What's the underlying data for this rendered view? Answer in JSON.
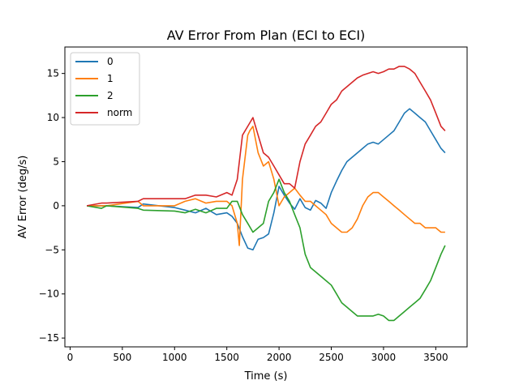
{
  "chart_data": {
    "type": "line",
    "title": "AV Error From Plan (ECI to ECI)",
    "xlabel": "Time (s)",
    "ylabel": "AV Error (deg/s)",
    "xlim": [
      -50,
      3800
    ],
    "ylim": [
      -16,
      18
    ],
    "xticks": [
      0,
      500,
      1000,
      1500,
      2000,
      2500,
      3000,
      3500
    ],
    "yticks": [
      -15,
      -10,
      -5,
      0,
      5,
      10,
      15
    ],
    "grid": false,
    "legend_position": "top-left",
    "series": [
      {
        "name": "0",
        "color": "#1f77b4",
        "x": [
          160,
          300,
          350,
          650,
          700,
          1000,
          1100,
          1200,
          1300,
          1400,
          1500,
          1550,
          1600,
          1650,
          1700,
          1750,
          1800,
          1850,
          1900,
          1950,
          2000,
          2050,
          2100,
          2150,
          2200,
          2250,
          2300,
          2350,
          2400,
          2450,
          2500,
          2550,
          2600,
          2650,
          2700,
          2750,
          2800,
          2850,
          2900,
          2950,
          3000,
          3050,
          3100,
          3150,
          3200,
          3250,
          3300,
          3350,
          3400,
          3450,
          3500,
          3550,
          3590
        ],
        "y": [
          0,
          0,
          0,
          -0.2,
          0.2,
          -0.2,
          -0.5,
          -0.8,
          -0.3,
          -1.0,
          -0.8,
          -1.2,
          -2.0,
          -3.5,
          -4.8,
          -5.0,
          -3.8,
          -3.6,
          -3.2,
          -0.8,
          2.2,
          1.2,
          0.3,
          -0.4,
          0.8,
          -0.2,
          -0.5,
          0.6,
          0.3,
          -0.3,
          1.5,
          2.8,
          4.0,
          5.0,
          5.5,
          6.0,
          6.5,
          7.0,
          7.2,
          7.0,
          7.5,
          8.0,
          8.5,
          9.5,
          10.5,
          11.0,
          10.5,
          10.0,
          9.5,
          8.5,
          7.5,
          6.5,
          6.0
        ]
      },
      {
        "name": "1",
        "color": "#ff7f0e",
        "x": [
          160,
          300,
          350,
          650,
          700,
          1000,
          1100,
          1200,
          1300,
          1400,
          1500,
          1550,
          1600,
          1620,
          1650,
          1700,
          1720,
          1750,
          1800,
          1850,
          1900,
          1950,
          2000,
          2050,
          2100,
          2150,
          2200,
          2250,
          2300,
          2350,
          2400,
          2450,
          2500,
          2550,
          2600,
          2650,
          2700,
          2750,
          2800,
          2850,
          2900,
          2950,
          3000,
          3050,
          3100,
          3150,
          3200,
          3250,
          3300,
          3350,
          3400,
          3450,
          3500,
          3550,
          3590
        ],
        "y": [
          0,
          0,
          0,
          0.5,
          0,
          0,
          0.5,
          0.8,
          0.3,
          0.5,
          0.5,
          0,
          -2.0,
          -4.5,
          3.0,
          8.0,
          8.5,
          9.0,
          6.0,
          4.5,
          5.0,
          3.0,
          0,
          1.0,
          1.5,
          2.0,
          1.2,
          0.5,
          0.5,
          0,
          -0.5,
          -1.0,
          -2.0,
          -2.5,
          -3.0,
          -3.0,
          -2.5,
          -1.5,
          0,
          1.0,
          1.5,
          1.5,
          1.0,
          0.5,
          0,
          -0.5,
          -1.0,
          -1.5,
          -2.0,
          -2.0,
          -2.5,
          -2.5,
          -2.5,
          -3.0,
          -3.0
        ]
      },
      {
        "name": "2",
        "color": "#2ca02c",
        "x": [
          160,
          300,
          350,
          650,
          700,
          1000,
          1100,
          1200,
          1300,
          1400,
          1500,
          1550,
          1600,
          1650,
          1700,
          1750,
          1800,
          1850,
          1900,
          1950,
          2000,
          2050,
          2100,
          2150,
          2200,
          2250,
          2300,
          2350,
          2400,
          2450,
          2500,
          2550,
          2600,
          2650,
          2700,
          2750,
          2800,
          2850,
          2900,
          2950,
          3000,
          3050,
          3100,
          3150,
          3200,
          3250,
          3300,
          3350,
          3400,
          3450,
          3500,
          3550,
          3590
        ],
        "y": [
          0,
          -0.3,
          0,
          -0.3,
          -0.5,
          -0.6,
          -0.8,
          -0.4,
          -0.8,
          -0.3,
          -0.3,
          0.5,
          0.5,
          -1.0,
          -2.0,
          -3.0,
          -2.5,
          -2.0,
          0.5,
          1.5,
          3.0,
          1.5,
          0.5,
          -1.0,
          -2.5,
          -5.5,
          -7.0,
          -7.5,
          -8.0,
          -8.5,
          -9.0,
          -10.0,
          -11.0,
          -11.5,
          -12.0,
          -12.5,
          -12.5,
          -12.5,
          -12.5,
          -12.3,
          -12.5,
          -13.0,
          -13.0,
          -12.5,
          -12.0,
          -11.5,
          -11.0,
          -10.5,
          -9.5,
          -8.5,
          -7.0,
          -5.5,
          -4.5
        ]
      },
      {
        "name": "norm",
        "color": "#d62728",
        "x": [
          160,
          300,
          350,
          650,
          700,
          1000,
          1100,
          1200,
          1300,
          1400,
          1500,
          1550,
          1600,
          1650,
          1700,
          1750,
          1800,
          1850,
          1900,
          1950,
          2000,
          2050,
          2100,
          2150,
          2200,
          2250,
          2300,
          2350,
          2400,
          2450,
          2500,
          2550,
          2600,
          2650,
          2700,
          2750,
          2800,
          2850,
          2900,
          2950,
          3000,
          3050,
          3100,
          3150,
          3200,
          3250,
          3300,
          3350,
          3400,
          3450,
          3500,
          3550,
          3590
        ],
        "y": [
          0,
          0.3,
          0.3,
          0.5,
          0.8,
          0.8,
          0.8,
          1.2,
          1.2,
          1.0,
          1.5,
          1.2,
          3.0,
          8.0,
          9.0,
          10.0,
          8.0,
          6.0,
          5.5,
          4.5,
          3.5,
          2.5,
          2.5,
          2.0,
          5.0,
          7.0,
          8.0,
          9.0,
          9.5,
          10.5,
          11.5,
          12.0,
          13.0,
          13.5,
          14.0,
          14.5,
          14.8,
          15.0,
          15.2,
          15.0,
          15.2,
          15.5,
          15.5,
          15.8,
          15.8,
          15.5,
          15.0,
          14.0,
          13.0,
          12.0,
          10.5,
          9.0,
          8.5
        ]
      }
    ]
  }
}
